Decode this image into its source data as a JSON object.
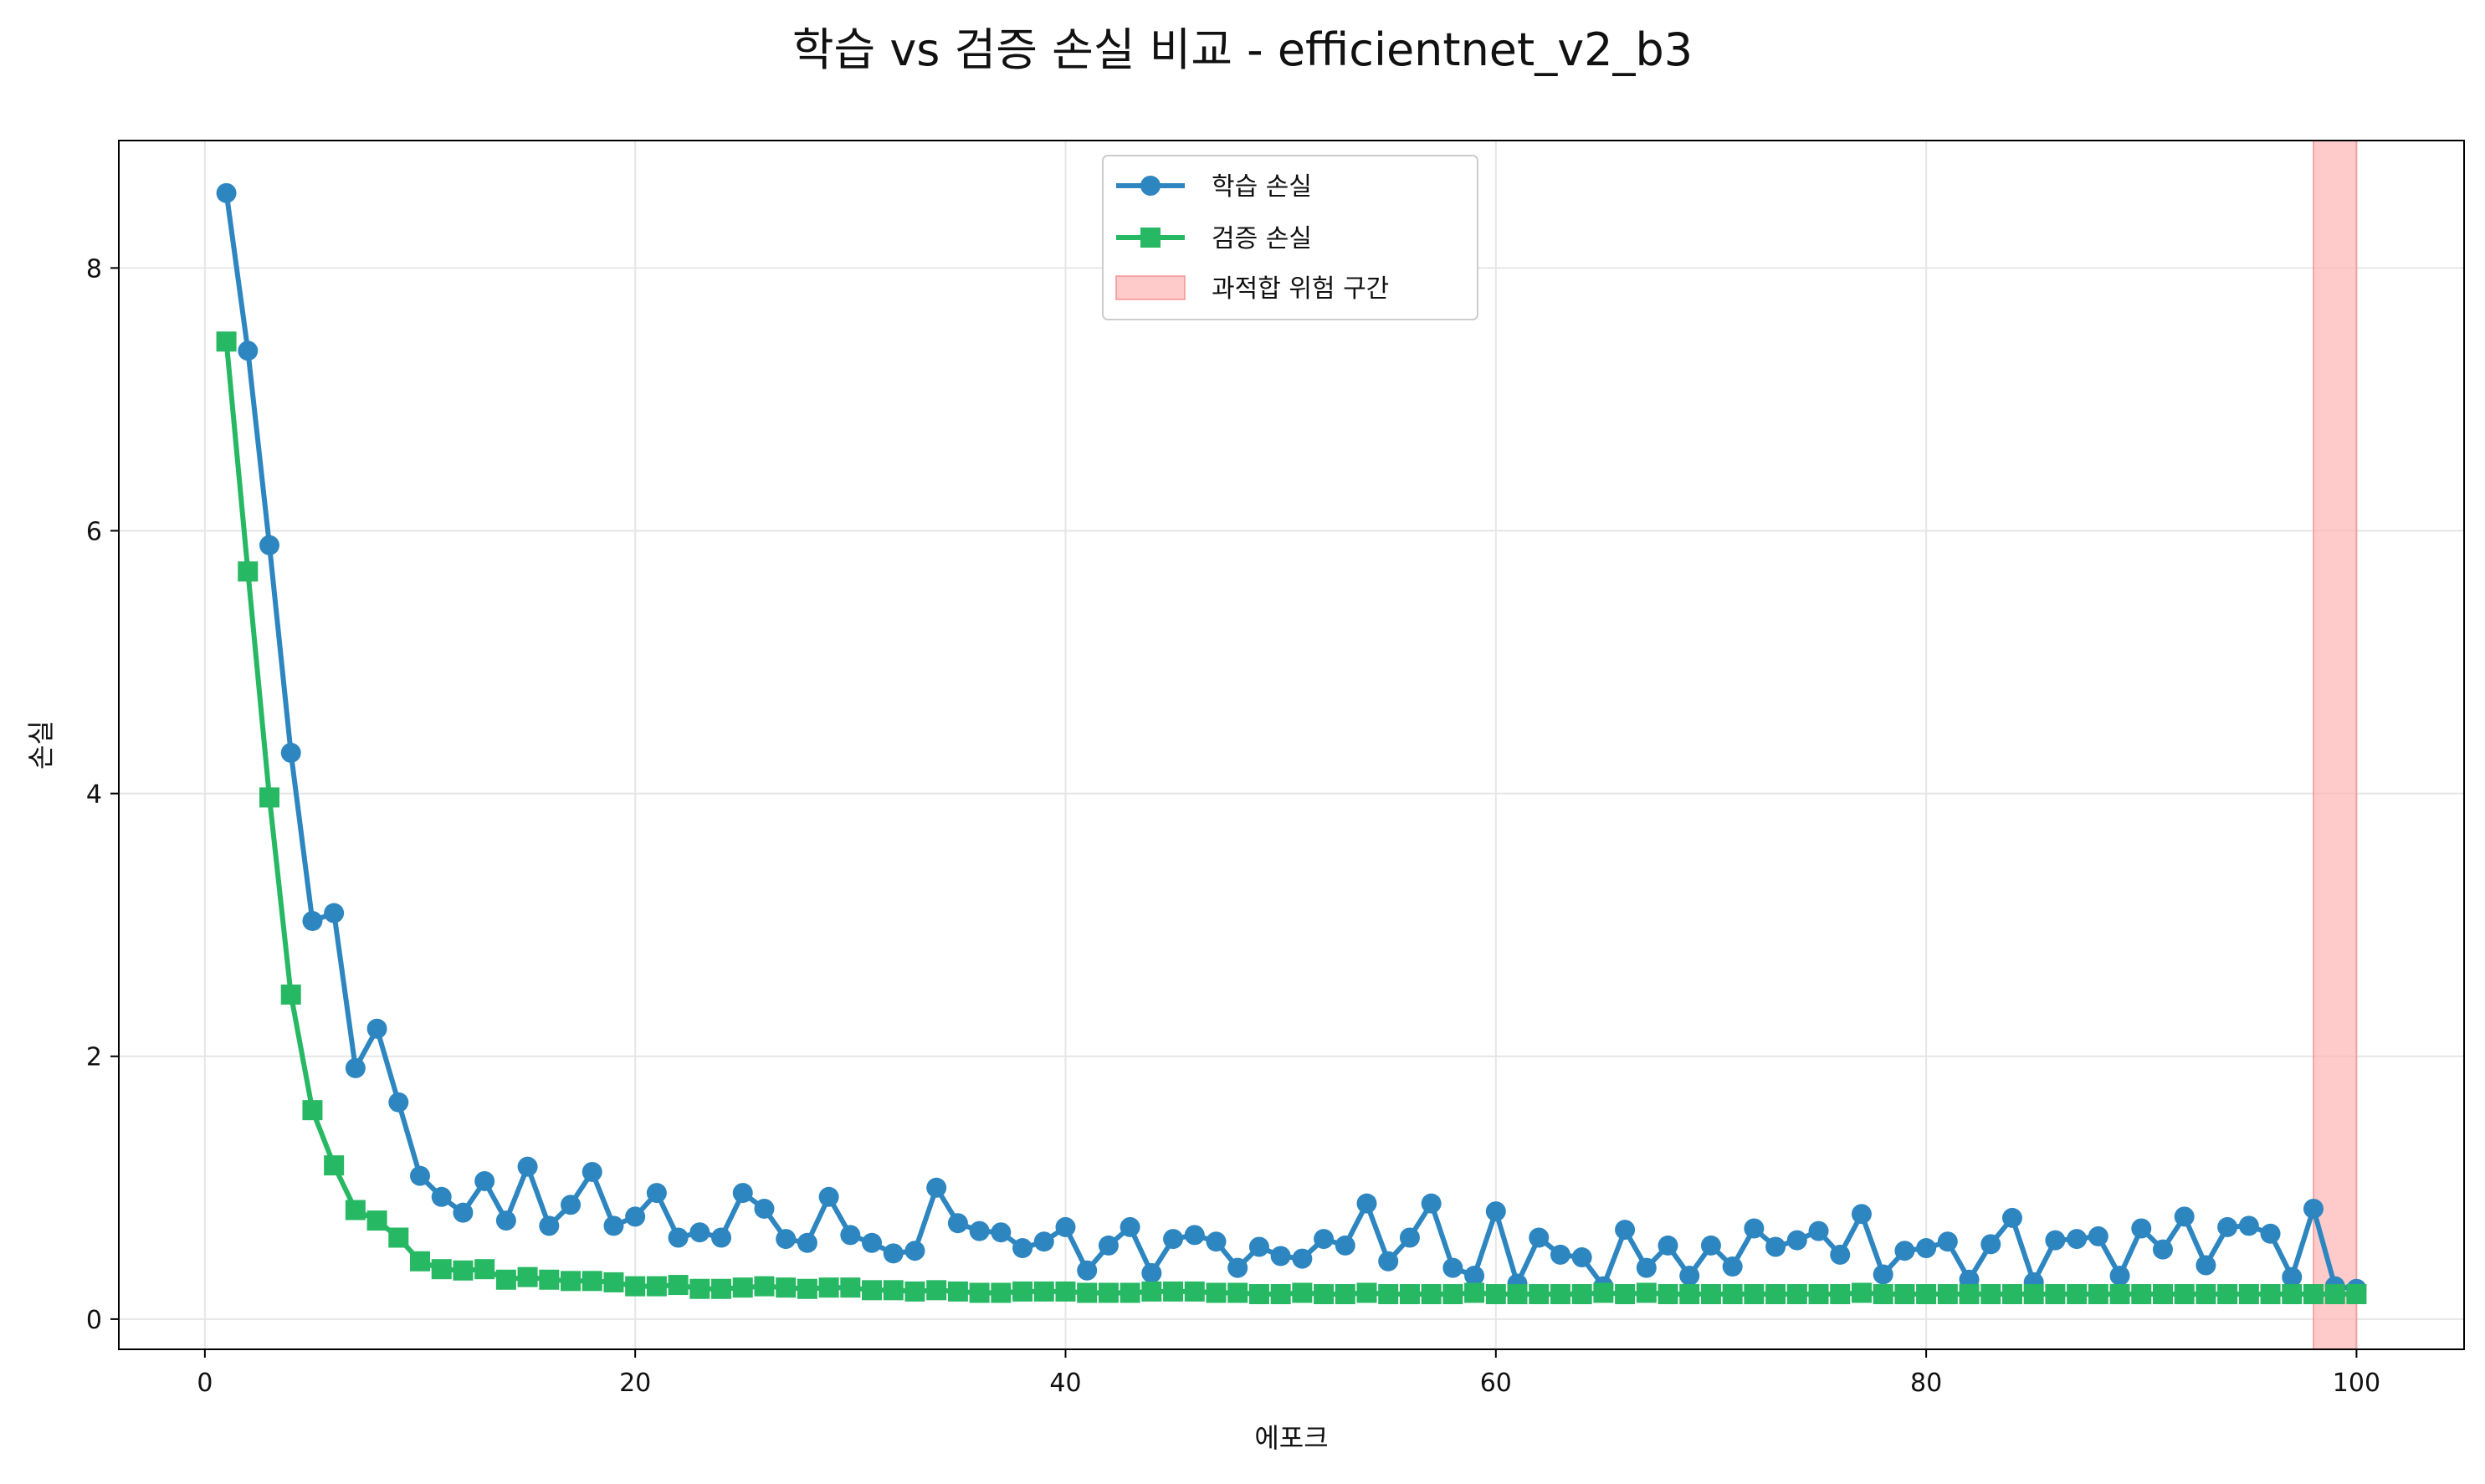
{
  "chart_data": {
    "type": "line",
    "title": "학습 vs 검증 손실 비교 - efficientnet_v2_b3",
    "xlabel": "에포크",
    "ylabel": "손실",
    "xlim": [
      -4,
      105
    ],
    "ylim": [
      -0.23,
      8.97
    ],
    "xticks": [
      0,
      20,
      40,
      60,
      80,
      100
    ],
    "yticks": [
      0,
      2,
      4,
      6,
      8
    ],
    "grid": true,
    "legend_position": "top-center",
    "x": [
      1,
      2,
      3,
      4,
      5,
      6,
      7,
      8,
      9,
      10,
      11,
      12,
      13,
      14,
      15,
      16,
      17,
      18,
      19,
      20,
      21,
      22,
      23,
      24,
      25,
      26,
      27,
      28,
      29,
      30,
      31,
      32,
      33,
      34,
      35,
      36,
      37,
      38,
      39,
      40,
      41,
      42,
      43,
      44,
      45,
      46,
      47,
      48,
      49,
      50,
      51,
      52,
      53,
      54,
      55,
      56,
      57,
      58,
      59,
      60,
      61,
      62,
      63,
      64,
      65,
      66,
      67,
      68,
      69,
      70,
      71,
      72,
      73,
      74,
      75,
      76,
      77,
      78,
      79,
      80,
      81,
      82,
      83,
      84,
      85,
      86,
      87,
      88,
      89,
      90,
      91,
      92,
      93,
      94,
      95,
      96,
      97,
      98,
      99,
      100
    ],
    "series": [
      {
        "name": "학습 손실",
        "color": "#2e86c1",
        "marker": "circle",
        "values": [
          8.57,
          7.37,
          5.89,
          4.31,
          3.03,
          3.09,
          1.91,
          2.21,
          1.65,
          1.09,
          0.93,
          0.81,
          1.05,
          0.75,
          1.16,
          0.71,
          0.87,
          1.12,
          0.71,
          0.78,
          0.96,
          0.62,
          0.66,
          0.62,
          0.96,
          0.84,
          0.61,
          0.58,
          0.93,
          0.64,
          0.58,
          0.5,
          0.52,
          1.0,
          0.73,
          0.67,
          0.66,
          0.54,
          0.59,
          0.7,
          0.37,
          0.56,
          0.7,
          0.35,
          0.61,
          0.64,
          0.59,
          0.39,
          0.55,
          0.48,
          0.46,
          0.61,
          0.56,
          0.88,
          0.44,
          0.62,
          0.88,
          0.39,
          0.33,
          0.82,
          0.27,
          0.62,
          0.49,
          0.47,
          0.25,
          0.68,
          0.39,
          0.56,
          0.33,
          0.56,
          0.4,
          0.69,
          0.55,
          0.6,
          0.67,
          0.49,
          0.8,
          0.34,
          0.52,
          0.54,
          0.59,
          0.3,
          0.57,
          0.77,
          0.28,
          0.6,
          0.61,
          0.63,
          0.33,
          0.69,
          0.53,
          0.78,
          0.41,
          0.7,
          0.71,
          0.65,
          0.32,
          0.84,
          0.25,
          0.23
        ]
      },
      {
        "name": "검증 손실",
        "color": "#27b863",
        "marker": "square",
        "values": [
          7.44,
          5.69,
          3.97,
          2.47,
          1.59,
          1.17,
          0.83,
          0.75,
          0.62,
          0.44,
          0.38,
          0.37,
          0.38,
          0.3,
          0.32,
          0.3,
          0.29,
          0.29,
          0.28,
          0.25,
          0.25,
          0.26,
          0.23,
          0.23,
          0.24,
          0.25,
          0.24,
          0.23,
          0.24,
          0.24,
          0.22,
          0.22,
          0.21,
          0.22,
          0.21,
          0.2,
          0.2,
          0.21,
          0.21,
          0.21,
          0.2,
          0.2,
          0.2,
          0.21,
          0.21,
          0.21,
          0.2,
          0.2,
          0.19,
          0.19,
          0.2,
          0.19,
          0.19,
          0.2,
          0.19,
          0.19,
          0.19,
          0.19,
          0.2,
          0.19,
          0.19,
          0.19,
          0.19,
          0.19,
          0.2,
          0.19,
          0.2,
          0.19,
          0.19,
          0.19,
          0.19,
          0.19,
          0.19,
          0.19,
          0.19,
          0.19,
          0.2,
          0.19,
          0.19,
          0.19,
          0.19,
          0.19,
          0.19,
          0.19,
          0.19,
          0.19,
          0.19,
          0.19,
          0.19,
          0.19,
          0.19,
          0.19,
          0.19,
          0.19,
          0.19,
          0.19,
          0.19,
          0.19,
          0.19,
          0.19
        ]
      }
    ],
    "shaded_region": {
      "name": "과적합 위험 구간",
      "x_start": 98,
      "x_end": 100,
      "color": "#ffb3b3"
    }
  }
}
